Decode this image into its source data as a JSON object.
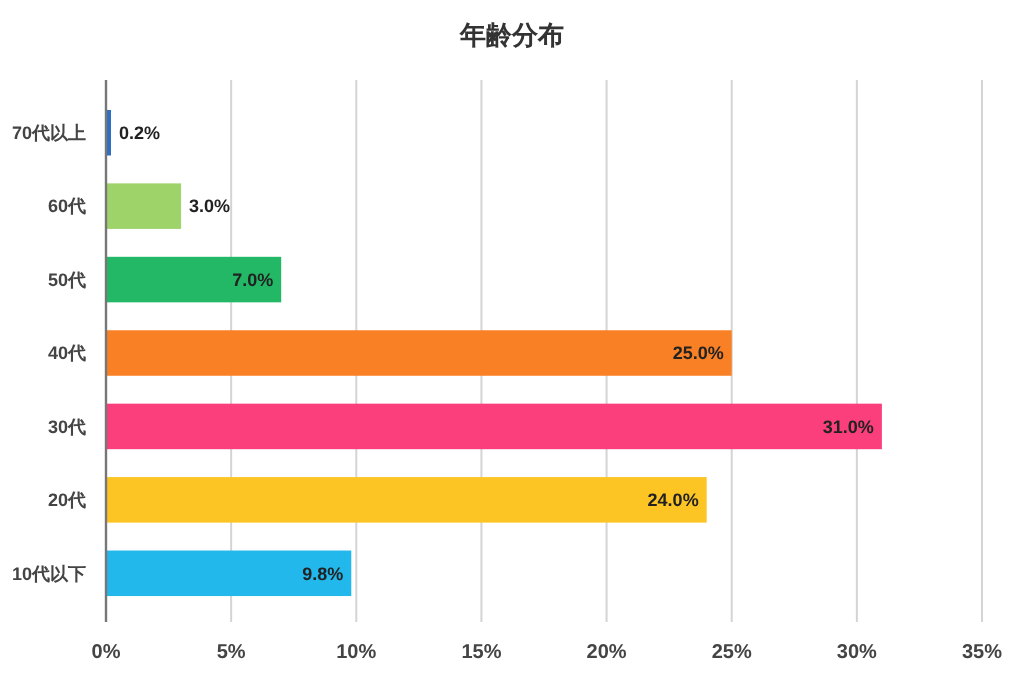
{
  "chart_data": {
    "type": "bar",
    "orientation": "horizontal",
    "title": "年齢分布",
    "categories": [
      "70代以上",
      "60代",
      "50代",
      "40代",
      "30代",
      "20代",
      "10代以下"
    ],
    "values": [
      0.2,
      3.0,
      7.0,
      25.0,
      31.0,
      24.0,
      9.8
    ],
    "colors": [
      "#2e6fc0",
      "#9ed36a",
      "#22b866",
      "#f98025",
      "#fb3f7c",
      "#fdc524",
      "#22b8ec"
    ],
    "value_labels": [
      "0.2%",
      "3.0%",
      "7.0%",
      "25.0%",
      "31.0%",
      "24.0%",
      "9.8%"
    ],
    "xlim": [
      0,
      35
    ],
    "xticks": [
      {
        "value": 0,
        "label": "0%"
      },
      {
        "value": 5,
        "label": "5%"
      },
      {
        "value": 10,
        "label": "10%"
      },
      {
        "value": 15,
        "label": "15%"
      },
      {
        "value": 20,
        "label": "20%"
      },
      {
        "value": 25,
        "label": "25%"
      },
      {
        "value": 30,
        "label": "30%"
      },
      {
        "value": 35,
        "label": "35%"
      }
    ],
    "grid": "x"
  }
}
